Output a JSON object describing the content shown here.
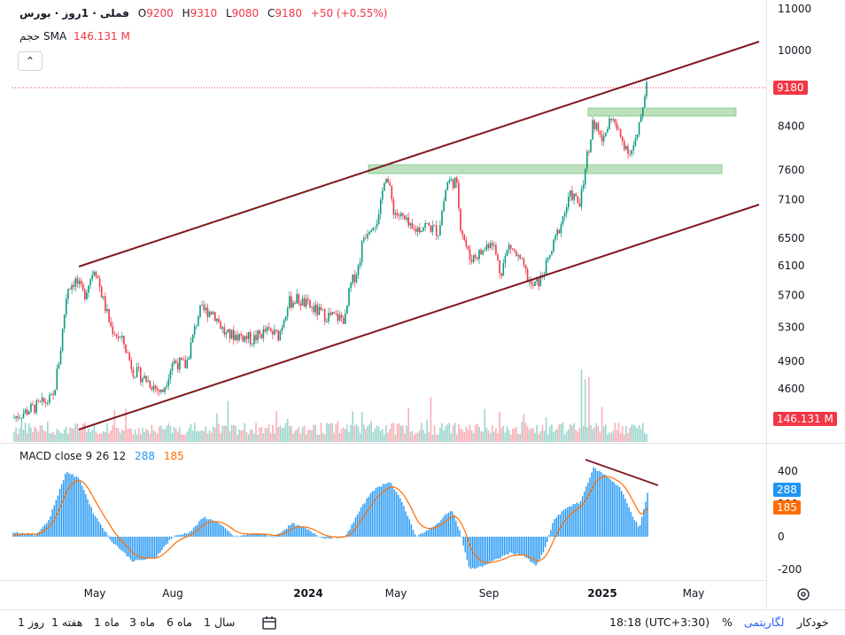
{
  "symbol": {
    "title": "فملی · 1روز · بورس",
    "open_label": "O",
    "open": "9200",
    "high_label": "H",
    "high": "9310",
    "low_label": "L",
    "low": "9080",
    "close_label": "C",
    "close": "9180",
    "change": "+50 (+0.55%)"
  },
  "volume": {
    "label": "حجم",
    "sma_label": "SMA",
    "sma_value": "146.131 M",
    "axis_tag": "146.131 M"
  },
  "price_axis": {
    "ticks": [
      {
        "label": "11000",
        "value": 11000
      },
      {
        "label": "10000",
        "value": 10000
      },
      {
        "label": "8400",
        "value": 8400
      },
      {
        "label": "7600",
        "value": 7600
      },
      {
        "label": "7100",
        "value": 7100
      },
      {
        "label": "6500",
        "value": 6500
      },
      {
        "label": "6100",
        "value": 6100
      },
      {
        "label": "5700",
        "value": 5700
      },
      {
        "label": "5300",
        "value": 5300
      },
      {
        "label": "4900",
        "value": 4900
      },
      {
        "label": "4600",
        "value": 4600
      }
    ],
    "last_price_tag": "9180",
    "last_price": 9180
  },
  "macd": {
    "label": "MACD close 9 26 12",
    "value_blue": "288",
    "value_orange": "185",
    "axis_ticks": [
      "400",
      "200",
      "0",
      "-200"
    ],
    "tag_blue": "288",
    "tag_orange": "185"
  },
  "time_axis": [
    "May",
    "Aug",
    "2024",
    "May",
    "Sep",
    "2025",
    "May"
  ],
  "bottom_bar": {
    "ranges": [
      "1 روز",
      "1 هفته",
      "1 ماه",
      "3 ماه",
      "6 ماه",
      "1 سال"
    ],
    "clock": "18:18 (UTC+3:30)",
    "percent": "%",
    "log": "لگاریتمی",
    "auto": "خودکار"
  },
  "colors": {
    "up": "#089981",
    "down": "#f23645",
    "macd": "#2196f3",
    "signal": "#ff6d00",
    "channel": "#801922",
    "zone": "#a5d6a7"
  },
  "icons": [
    "calendar-range-icon",
    "chevron-up-icon",
    "settings-icon"
  ]
}
